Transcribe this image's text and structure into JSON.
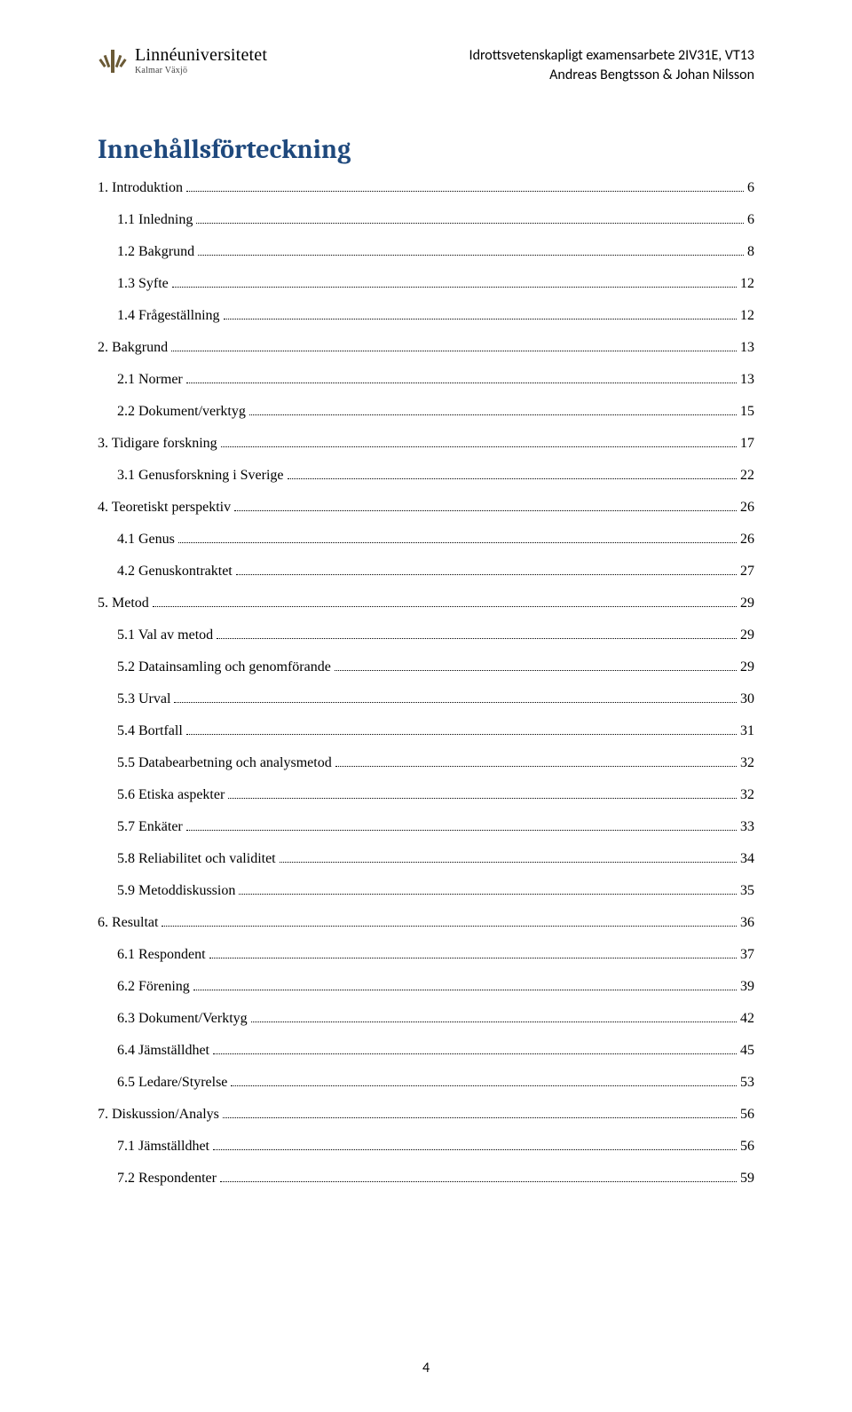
{
  "header": {
    "logo_main": "Linnéuniversitetet",
    "logo_sub": "Kalmar Växjö",
    "course_line": "Idrottsvetenskapligt examensarbete 2IV31E, VT13",
    "authors_line": "Andreas Bengtsson & Johan Nilsson"
  },
  "toc_title": "Innehållsförteckning",
  "toc": [
    {
      "level": 1,
      "label": "1. Introduktion",
      "page": "6"
    },
    {
      "level": 2,
      "label": "1.1 Inledning",
      "page": "6"
    },
    {
      "level": 2,
      "label": "1.2 Bakgrund",
      "page": "8"
    },
    {
      "level": 2,
      "label": "1.3 Syfte",
      "page": "12"
    },
    {
      "level": 2,
      "label": "1.4 Frågeställning",
      "page": "12"
    },
    {
      "level": 1,
      "label": "2. Bakgrund",
      "page": "13"
    },
    {
      "level": 2,
      "label": "2.1 Normer",
      "page": "13"
    },
    {
      "level": 2,
      "label": "2.2 Dokument/verktyg",
      "page": "15"
    },
    {
      "level": 1,
      "label": "3. Tidigare forskning",
      "page": "17"
    },
    {
      "level": 2,
      "label": "3.1 Genusforskning i Sverige",
      "page": "22"
    },
    {
      "level": 1,
      "label": "4. Teoretiskt perspektiv",
      "page": "26"
    },
    {
      "level": 2,
      "label": "4.1 Genus",
      "page": "26"
    },
    {
      "level": 2,
      "label": "4.2 Genuskontraktet",
      "page": "27"
    },
    {
      "level": 1,
      "label": "5. Metod",
      "page": "29"
    },
    {
      "level": 2,
      "label": "5.1 Val av metod",
      "page": "29"
    },
    {
      "level": 2,
      "label": "5.2 Datainsamling och genomförande",
      "page": "29"
    },
    {
      "level": 2,
      "label": "5.3 Urval",
      "page": "30"
    },
    {
      "level": 2,
      "label": "5.4 Bortfall",
      "page": "31"
    },
    {
      "level": 2,
      "label": "5.5 Databearbetning och analysmetod",
      "page": "32"
    },
    {
      "level": 2,
      "label": "5.6 Etiska aspekter",
      "page": "32"
    },
    {
      "level": 2,
      "label": "5.7 Enkäter",
      "page": "33"
    },
    {
      "level": 2,
      "label": "5.8 Reliabilitet och validitet",
      "page": "34"
    },
    {
      "level": 2,
      "label": "5.9 Metoddiskussion",
      "page": "35"
    },
    {
      "level": 1,
      "label": "6. Resultat",
      "page": "36"
    },
    {
      "level": 2,
      "label": "6.1 Respondent",
      "page": "37"
    },
    {
      "level": 2,
      "label": "6.2 Förening",
      "page": "39"
    },
    {
      "level": 2,
      "label": "6.3 Dokument/Verktyg",
      "page": "42"
    },
    {
      "level": 2,
      "label": "6.4 Jämställdhet",
      "page": "45"
    },
    {
      "level": 2,
      "label": "6.5 Ledare/Styrelse",
      "page": "53"
    },
    {
      "level": 1,
      "label": "7. Diskussion/Analys",
      "page": "56"
    },
    {
      "level": 2,
      "label": "7.1 Jämställdhet",
      "page": "56"
    },
    {
      "level": 2,
      "label": "7.2 Respondenter",
      "page": "59"
    }
  ],
  "page_number": "4",
  "colors": {
    "heading": "#1f497d",
    "text": "#000000",
    "background": "#ffffff"
  }
}
